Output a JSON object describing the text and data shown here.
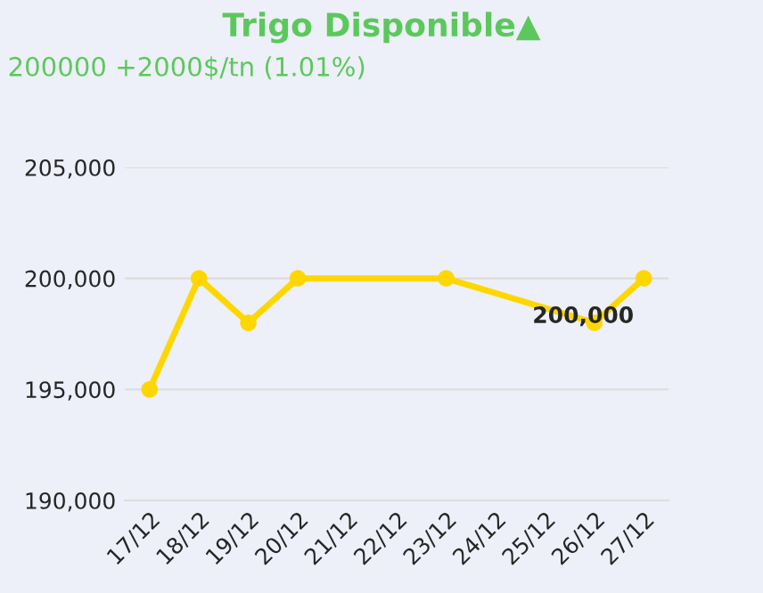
{
  "chart_data": {
    "type": "line",
    "title": "Trigo Disponible▲",
    "subtitle": "200000 +2000$/tn (1.01%)",
    "categories": [
      "17/12",
      "18/12",
      "19/12",
      "20/12",
      "21/12",
      "22/12",
      "23/12",
      "24/12",
      "25/12",
      "26/12",
      "27/12"
    ],
    "series": [
      {
        "color": "#ffd700",
        "values": [
          195000,
          200000,
          198000,
          200000,
          null,
          null,
          200000,
          null,
          null,
          198000,
          200000
        ]
      }
    ],
    "annotations": [
      {
        "text": "200,000",
        "x": "27/12",
        "y": 200000
      }
    ],
    "ylim": [
      190000,
      205000
    ],
    "yticks": [
      {
        "value": 190000,
        "label": "190,000"
      },
      {
        "value": 195000,
        "label": "195,000"
      },
      {
        "value": 200000,
        "label": "200,000"
      },
      {
        "value": 205000,
        "label": "205,000"
      }
    ],
    "grid": "y",
    "marker": "circle",
    "line_style": "solid",
    "legend": false
  }
}
